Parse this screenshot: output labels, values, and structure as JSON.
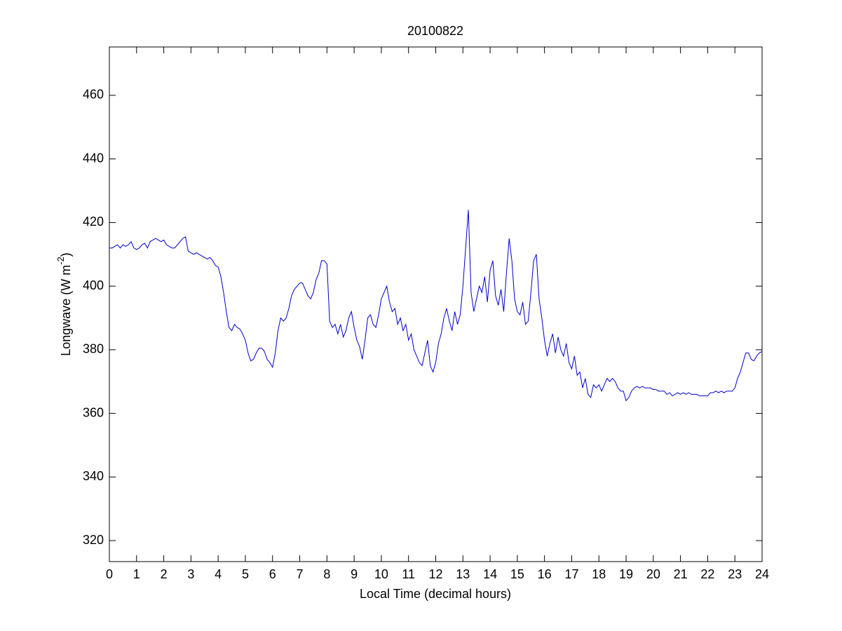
{
  "chart_data": {
    "type": "line",
    "title": "20100822",
    "x_label": "Local Time (decimal hours)",
    "y_label": {
      "base": "Longwave (W m",
      "superscript": "-2",
      "close": ")"
    },
    "x": [
      0,
      0.1,
      0.2,
      0.3,
      0.4,
      0.5,
      0.6,
      0.7,
      0.8,
      0.9,
      1,
      1.1,
      1.2,
      1.3,
      1.4,
      1.5,
      1.6,
      1.7,
      1.8,
      1.9,
      2,
      2.1,
      2.2,
      2.3,
      2.4,
      2.5,
      2.6,
      2.7,
      2.8,
      2.9,
      3,
      3.1,
      3.2,
      3.3,
      3.4,
      3.5,
      3.6,
      3.7,
      3.8,
      3.9,
      4,
      4.1,
      4.2,
      4.3,
      4.4,
      4.5,
      4.6,
      4.7,
      4.8,
      4.9,
      5,
      5.1,
      5.2,
      5.3,
      5.4,
      5.5,
      5.6,
      5.7,
      5.8,
      5.9,
      6,
      6.1,
      6.2,
      6.3,
      6.4,
      6.5,
      6.6,
      6.7,
      6.8,
      6.9,
      7,
      7.1,
      7.2,
      7.3,
      7.4,
      7.5,
      7.6,
      7.7,
      7.8,
      7.9,
      8,
      8.1,
      8.2,
      8.3,
      8.4,
      8.5,
      8.6,
      8.7,
      8.8,
      8.9,
      9,
      9.1,
      9.2,
      9.3,
      9.4,
      9.5,
      9.6,
      9.7,
      9.8,
      9.9,
      10,
      10.1,
      10.2,
      10.3,
      10.4,
      10.5,
      10.6,
      10.7,
      10.8,
      10.9,
      11,
      11.1,
      11.2,
      11.3,
      11.4,
      11.5,
      11.6,
      11.7,
      11.8,
      11.9,
      12,
      12.1,
      12.2,
      12.3,
      12.4,
      12.5,
      12.6,
      12.7,
      12.8,
      12.9,
      13,
      13.1,
      13.2,
      13.3,
      13.4,
      13.5,
      13.6,
      13.7,
      13.8,
      13.9,
      14,
      14.1,
      14.2,
      14.3,
      14.4,
      14.5,
      14.6,
      14.7,
      14.8,
      14.9,
      15,
      15.1,
      15.2,
      15.3,
      15.4,
      15.5,
      15.6,
      15.7,
      15.8,
      15.9,
      16,
      16.1,
      16.2,
      16.3,
      16.4,
      16.5,
      16.6,
      16.7,
      16.8,
      16.9,
      17,
      17.1,
      17.2,
      17.3,
      17.4,
      17.5,
      17.6,
      17.7,
      17.8,
      17.9,
      18,
      18.1,
      18.2,
      18.3,
      18.4,
      18.5,
      18.6,
      18.7,
      18.8,
      18.9,
      19,
      19.1,
      19.2,
      19.3,
      19.4,
      19.5,
      19.6,
      19.7,
      19.8,
      19.9,
      20,
      20.1,
      20.2,
      20.3,
      20.4,
      20.5,
      20.6,
      20.7,
      20.8,
      20.9,
      21,
      21.1,
      21.2,
      21.3,
      21.4,
      21.5,
      21.6,
      21.7,
      21.8,
      21.9,
      22,
      22.1,
      22.2,
      22.3,
      22.4,
      22.5,
      22.6,
      22.7,
      22.8,
      22.9,
      23,
      23.1,
      23.2,
      23.3,
      23.4,
      23.5,
      23.6,
      23.7,
      23.8,
      23.9,
      24
    ],
    "series": [
      {
        "color": "#0000cc",
        "values": [
          412,
          412,
          412.5,
          413,
          412,
          413,
          412.5,
          413,
          414,
          412,
          411.5,
          412,
          413,
          413.5,
          412,
          414,
          414.5,
          415,
          414.5,
          414,
          414.5,
          413,
          412.5,
          412,
          412,
          413,
          414,
          415,
          415.5,
          411,
          410.5,
          410,
          410.5,
          410,
          409.5,
          409,
          408.5,
          409,
          408,
          406.5,
          406,
          403,
          398,
          392,
          387,
          386,
          388,
          387,
          386.5,
          385,
          383,
          379,
          376.5,
          377,
          379,
          380.5,
          380.5,
          379.5,
          377,
          376,
          374.5,
          379,
          386,
          390,
          389,
          390,
          393,
          397,
          399,
          400,
          401,
          401,
          399,
          397,
          396,
          398,
          402,
          404,
          408,
          408,
          407,
          389,
          387,
          388,
          385,
          388,
          384,
          386,
          390,
          392,
          387,
          383,
          381,
          377,
          383,
          390,
          391,
          388,
          387,
          391,
          396,
          398,
          400,
          395,
          392,
          393,
          388,
          390,
          386,
          388,
          383,
          385,
          380,
          378,
          376,
          375,
          379,
          383,
          375,
          373,
          376,
          382,
          385,
          390,
          393,
          389,
          386,
          392,
          388,
          391,
          400,
          412,
          424,
          398,
          392,
          396,
          400,
          398,
          403,
          395,
          405,
          408,
          397,
          394,
          399,
          392,
          404,
          415,
          408,
          396,
          392,
          391,
          395,
          388,
          389,
          398,
          408,
          410,
          396,
          390,
          383,
          378,
          382,
          385,
          379,
          384,
          380,
          378,
          382,
          376,
          374,
          378,
          372,
          373,
          368,
          371,
          366,
          365,
          369,
          368,
          369,
          367,
          369,
          371,
          370,
          371,
          370,
          368,
          367,
          367,
          364,
          365,
          367,
          368,
          368.5,
          368,
          368.5,
          368,
          368,
          368,
          367.5,
          367.5,
          367,
          367,
          367,
          366,
          366.5,
          365.5,
          366,
          366.5,
          366,
          366.5,
          366,
          366.5,
          366,
          366,
          366,
          365.5,
          365.5,
          365.5,
          365.5,
          366.5,
          366.5,
          367,
          366.5,
          367,
          366.5,
          367,
          367,
          367,
          368,
          371,
          373,
          376,
          379,
          379,
          377,
          376.5,
          378,
          379,
          379.5
        ]
      }
    ],
    "xlim": [
      0,
      24
    ],
    "xticks": [
      0,
      1,
      2,
      3,
      4,
      5,
      6,
      7,
      8,
      9,
      10,
      11,
      12,
      13,
      14,
      15,
      16,
      17,
      18,
      19,
      20,
      21,
      22,
      23,
      24
    ],
    "ylim": [
      313.4,
      475.2
    ],
    "yticks": [
      320,
      340,
      360,
      380,
      400,
      420,
      440,
      460
    ],
    "grid": false
  }
}
